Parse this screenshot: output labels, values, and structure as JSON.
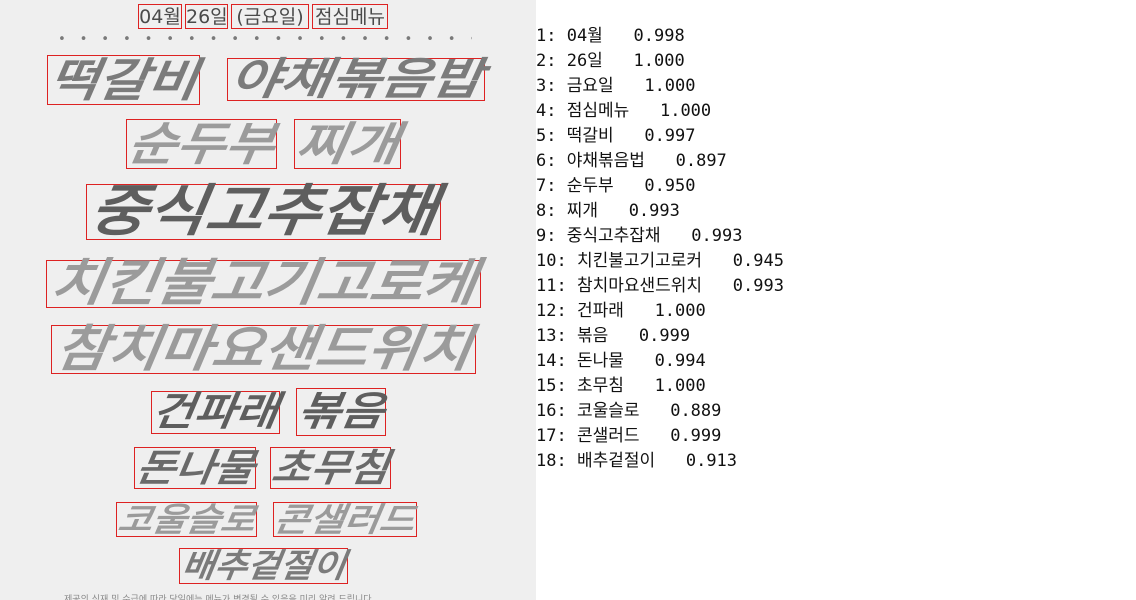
{
  "poster": {
    "header": {
      "month": "04월",
      "day": "26일",
      "weekday": "(금요일)",
      "title": "점심메뉴"
    },
    "dots": "• • • • • • • • • • • • • • • • • • • • • • • • • • • • • • • • • • • • •",
    "menu": {
      "w1": "떡갈비",
      "w2": "야채볶음밥",
      "w3": "순두부",
      "w4": "찌개",
      "w5": "중식고추잡채",
      "w6": "치킨불고기고로케",
      "w7": "참치마요샌드위치",
      "w8": "건파래",
      "w9": "볶음",
      "w10": "돈나물",
      "w11": "초무침",
      "w12": "코울슬로",
      "w13": "콘샐러드",
      "w14": "배추겉절이"
    },
    "footer": "제공의 식재 및 수급에 따라 당일에는 메뉴가 변경될 수 있음을 미리 알려 드립니다"
  },
  "results": [
    "1: 04월   0.998",
    "2: 26일   1.000",
    "3: 금요일   1.000",
    "4: 점심메뉴   1.000",
    "5: 떡갈비   0.997",
    "6: 야채볶음법   0.897",
    "7: 순두부   0.950",
    "8: 찌개   0.993",
    "9: 중식고추잡채   0.993",
    "10: 치킨불고기고로커   0.945",
    "11: 참치마요샌드위치   0.993",
    "12: 건파래   1.000",
    "13: 볶음   0.999",
    "14: 돈나물   0.994",
    "15: 초무침   1.000",
    "16: 코울슬로   0.889",
    "17: 콘샐러드   0.999",
    "18: 배추겉절이   0.913"
  ]
}
